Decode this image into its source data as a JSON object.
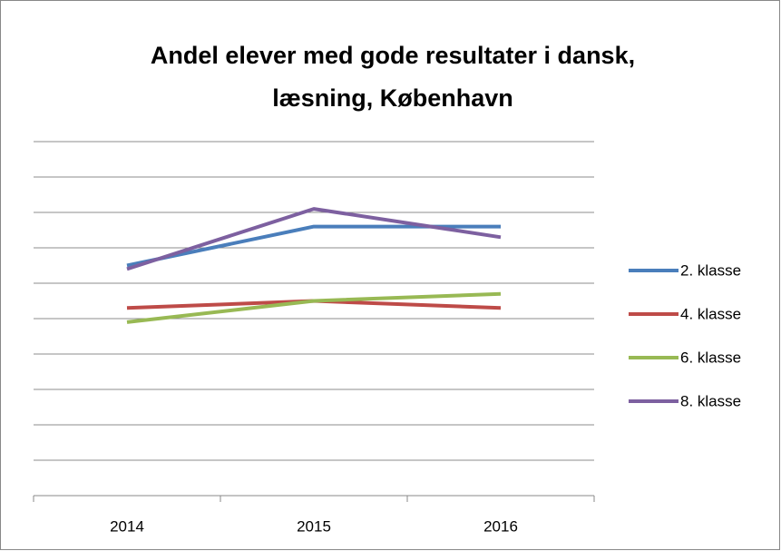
{
  "chart_data": {
    "type": "line",
    "title": "Andel elever med gode resultater i dansk, læsning, København",
    "categories": [
      "2014",
      "2015",
      "2016"
    ],
    "series": [
      {
        "name": "2. klasse",
        "color": "#4a7ebb",
        "values": [
          65,
          76,
          76
        ]
      },
      {
        "name": "4. klasse",
        "color": "#be4b48",
        "values": [
          53,
          55,
          53
        ]
      },
      {
        "name": "6. klasse",
        "color": "#98b954",
        "values": [
          49,
          55,
          57
        ]
      },
      {
        "name": "8. klasse",
        "color": "#7d60a0",
        "values": [
          64,
          81,
          73
        ]
      }
    ],
    "ylim": [
      0,
      100
    ],
    "yticks": [
      0,
      10,
      20,
      30,
      40,
      50,
      60,
      70,
      80,
      90,
      100
    ],
    "grid": true,
    "legend": "right"
  }
}
